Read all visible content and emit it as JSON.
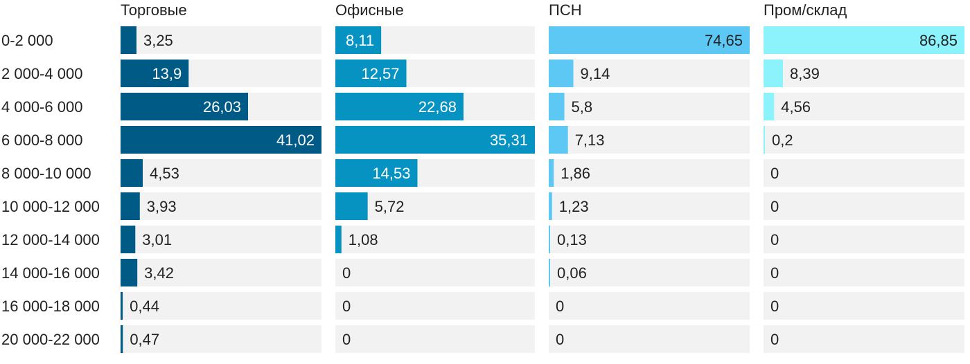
{
  "chart_data": {
    "type": "bar",
    "orientation": "horizontal",
    "layout": "small-multiples",
    "categories": [
      "0-2 000",
      "2 000-4 000",
      "4 000-6 000",
      "6 000-8 000",
      "8 000-10 000",
      "10 000-12 000",
      "12 000-14 000",
      "14 000-16 000",
      "16 000-18 000",
      "20 000-22 000"
    ],
    "series": [
      {
        "name": "Торговые",
        "color": "#005a86",
        "values": [
          3.25,
          13.9,
          26.03,
          41.02,
          4.53,
          3.93,
          3.01,
          3.42,
          0.44,
          0.47
        ],
        "labels": [
          "3,25",
          "13,9",
          "26,03",
          "41,02",
          "4,53",
          "3,93",
          "3,01",
          "3,42",
          "0,44",
          "0,47"
        ]
      },
      {
        "name": "Офисные",
        "color": "#0793c2",
        "values": [
          8.11,
          12.57,
          22.68,
          35.31,
          14.53,
          5.72,
          1.08,
          0,
          0,
          0
        ],
        "labels": [
          "8,11",
          "12,57",
          "22,68",
          "35,31",
          "14,53",
          "5,72",
          "1,08",
          "0",
          "0",
          "0"
        ]
      },
      {
        "name": "ПСН",
        "color": "#5ec8f5",
        "values": [
          74.65,
          9.14,
          5.8,
          7.13,
          1.86,
          1.23,
          0.13,
          0.06,
          0,
          0
        ],
        "labels": [
          "74,65",
          "9,14",
          "5,8",
          "7,13",
          "1,86",
          "1,23",
          "0,13",
          "0,06",
          "0",
          "0"
        ]
      },
      {
        "name": "Пром/склад",
        "color": "#8cf2fc",
        "values": [
          86.85,
          8.39,
          4.56,
          0.2,
          0,
          0,
          0,
          0,
          0,
          0
        ],
        "labels": [
          "86,85",
          "8,39",
          "4,56",
          "0,2",
          "0",
          "0",
          "0",
          "0",
          "0",
          "0"
        ]
      }
    ],
    "track_color": "#f2f2f2",
    "grid": false,
    "legend": "none"
  }
}
